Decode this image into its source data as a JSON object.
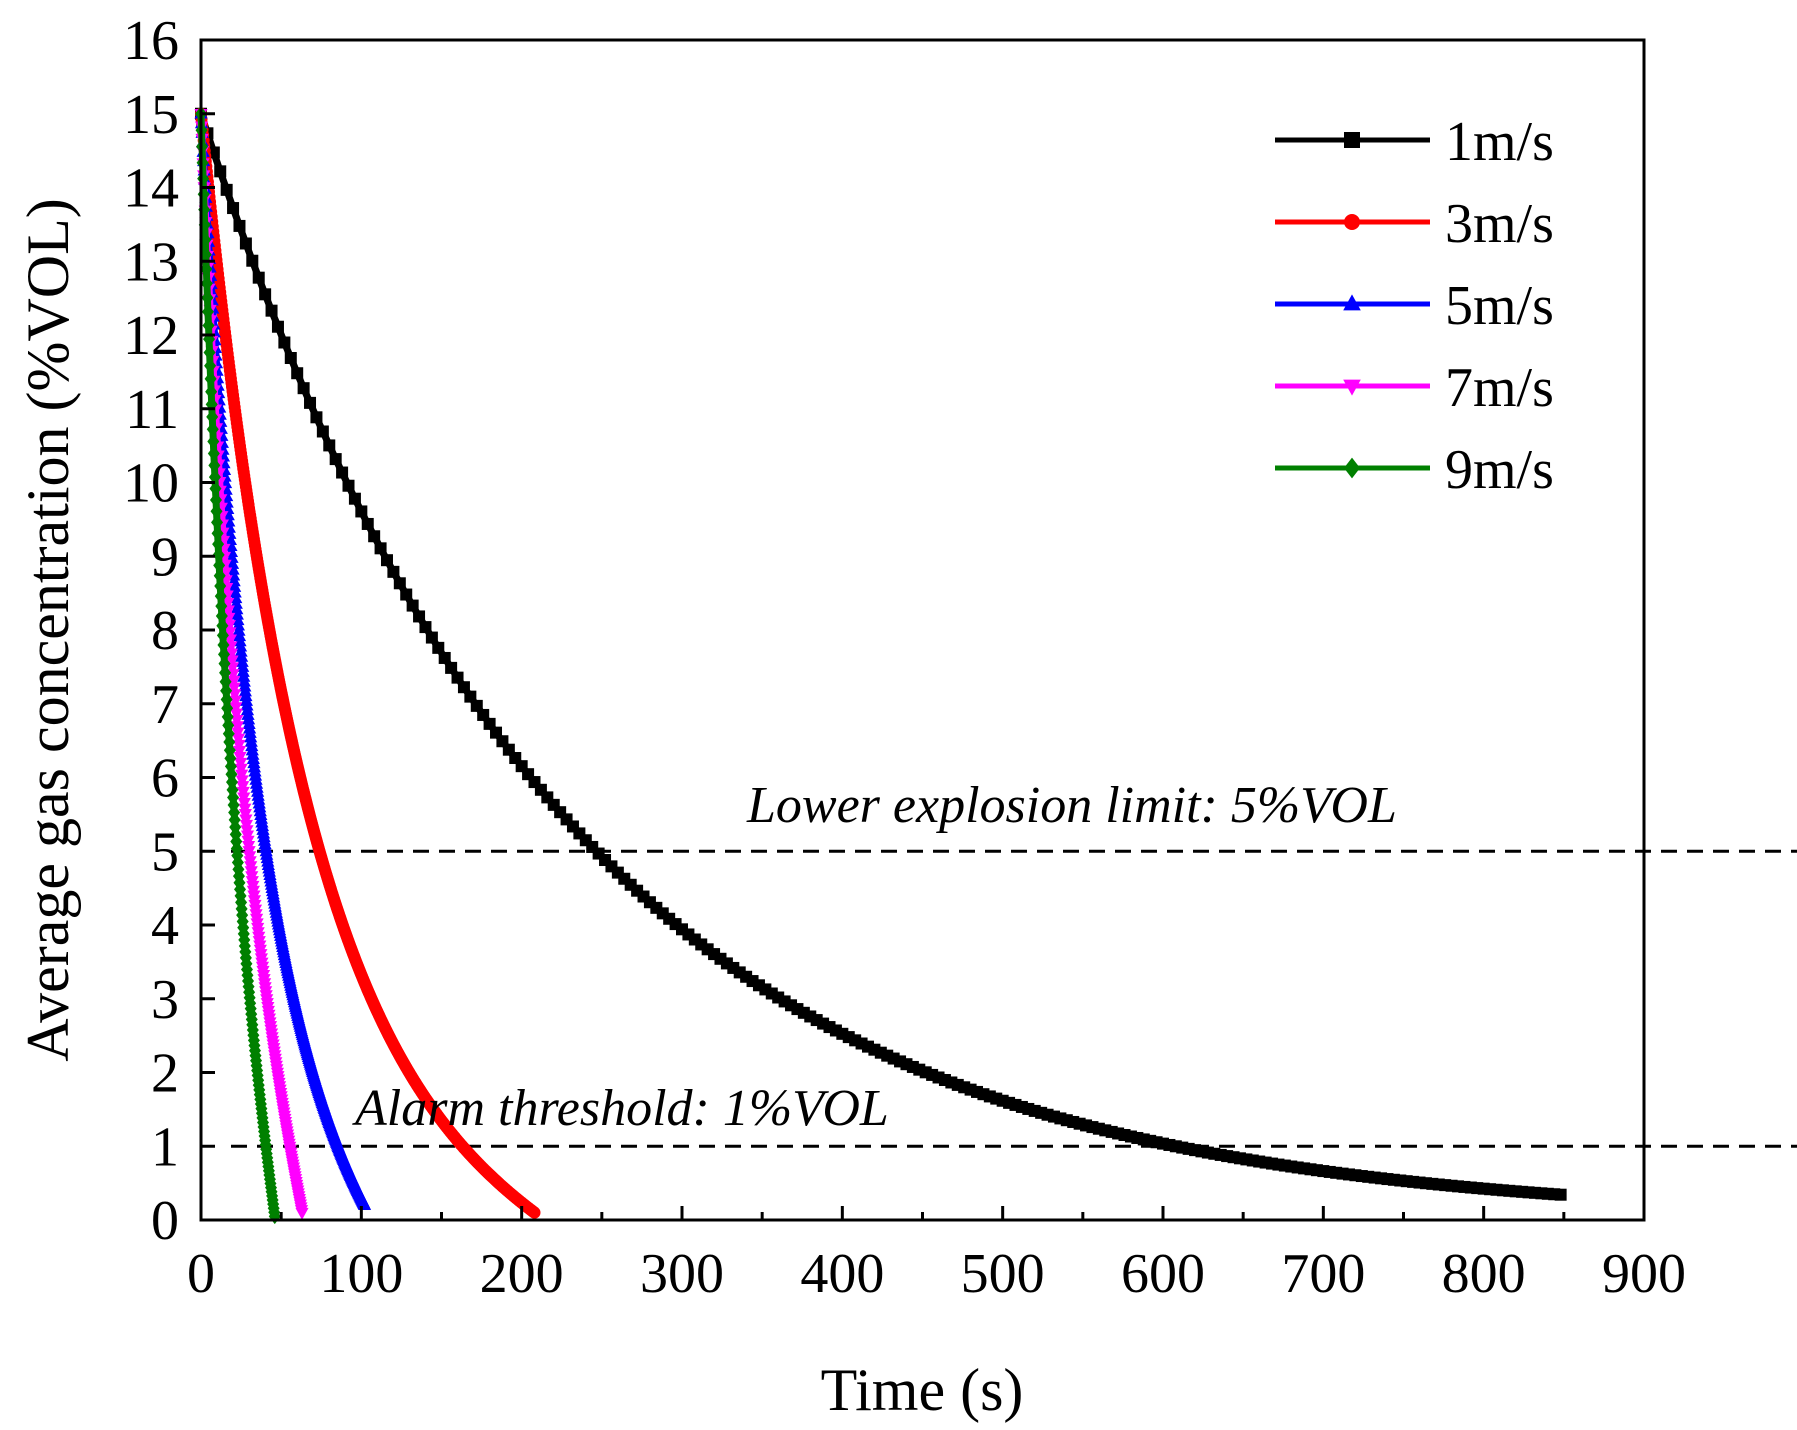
{
  "chart_data": {
    "type": "line",
    "title": "",
    "xlabel": "Time (s)",
    "ylabel": "Average gas concentration (%VOL)",
    "xlim": [
      0,
      900
    ],
    "ylim": [
      0,
      16
    ],
    "xticks": [
      0,
      100,
      200,
      300,
      400,
      500,
      600,
      700,
      800,
      900
    ],
    "yticks": [
      0,
      1,
      2,
      3,
      4,
      5,
      6,
      7,
      8,
      9,
      10,
      11,
      12,
      13,
      14,
      15,
      16
    ],
    "legend_position": "top-right",
    "series": [
      {
        "name": "1m/s",
        "color": "#000000",
        "marker": "square",
        "x_end": 850,
        "decay_rate": 0.004455,
        "points": [
          [
            0,
            15
          ],
          [
            100,
            9.6
          ],
          [
            200,
            6.15
          ],
          [
            270,
            4.5
          ],
          [
            300,
            3.94
          ],
          [
            400,
            2.52
          ],
          [
            500,
            1.62
          ],
          [
            600,
            1.04
          ],
          [
            700,
            0.66
          ],
          [
            800,
            0.42
          ],
          [
            850,
            0.33
          ]
        ]
      },
      {
        "name": "3m/s",
        "color": "#ff0000",
        "marker": "circle",
        "x_end": 208,
        "decay_rate": 0.01465,
        "points": [
          [
            0,
            15
          ],
          [
            25,
            10.4
          ],
          [
            50,
            7.2
          ],
          [
            76,
            4.95
          ],
          [
            100,
            3.46
          ],
          [
            150,
            1.67
          ],
          [
            160,
            1.0
          ],
          [
            208,
            0.1
          ]
        ]
      },
      {
        "name": "5m/s",
        "color": "#0000ff",
        "marker": "triangle-up",
        "x_end": 102,
        "decay_rate": 0.0264,
        "points": [
          [
            0,
            15
          ],
          [
            10,
            11.5
          ],
          [
            25,
            7.75
          ],
          [
            43,
            4.85
          ],
          [
            60,
            3.1
          ],
          [
            80,
            1.2
          ],
          [
            102,
            0.2
          ]
        ]
      },
      {
        "name": "7m/s",
        "color": "#ff00ff",
        "marker": "triangle-down",
        "x_end": 63,
        "decay_rate": 0.0342,
        "points": [
          [
            0,
            15
          ],
          [
            10,
            10.6
          ],
          [
            20,
            7.55
          ],
          [
            33,
            4.9
          ],
          [
            45,
            2.9
          ],
          [
            55,
            1.1
          ],
          [
            63,
            0.1
          ]
        ]
      },
      {
        "name": "9m/s",
        "color": "#008000",
        "marker": "diamond",
        "x_end": 46,
        "decay_rate": 0.0452,
        "points": [
          [
            0,
            15
          ],
          [
            10,
            9.5
          ],
          [
            20,
            6.05
          ],
          [
            25,
            4.85
          ],
          [
            35,
            2.8
          ],
          [
            41,
            1.0
          ],
          [
            46,
            0.05
          ]
        ]
      }
    ],
    "reference_lines": [
      {
        "y": 5,
        "label": "Lower explosion limit: 5%VOL"
      },
      {
        "y": 1,
        "label": "Alarm threshold: 1%VOL"
      }
    ]
  }
}
